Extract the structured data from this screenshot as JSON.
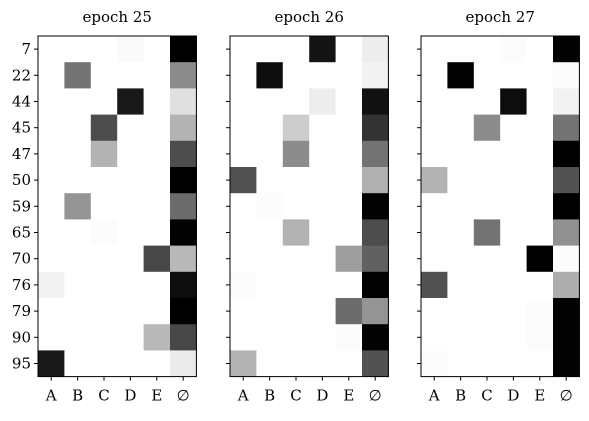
{
  "chart_data": {
    "type": "heatmap",
    "colormap": "grayscale (0 = white, 1 = black)",
    "rows": [
      "7",
      "22",
      "44",
      "45",
      "47",
      "50",
      "59",
      "65",
      "70",
      "76",
      "79",
      "90",
      "95"
    ],
    "cols": [
      "A",
      "B",
      "C",
      "D",
      "E",
      "∅"
    ],
    "panels": [
      {
        "title": "epoch 25",
        "values": [
          [
            0.0,
            0.0,
            0.0,
            0.02,
            0.0,
            1.0
          ],
          [
            0.0,
            0.55,
            0.0,
            0.0,
            0.0,
            0.45
          ],
          [
            0.0,
            0.0,
            0.0,
            0.9,
            0.0,
            0.12
          ],
          [
            0.0,
            0.0,
            0.7,
            0.0,
            0.0,
            0.3
          ],
          [
            0.0,
            0.0,
            0.3,
            0.0,
            0.0,
            0.7
          ],
          [
            0.0,
            0.0,
            0.0,
            0.0,
            0.0,
            1.0
          ],
          [
            0.0,
            0.42,
            0.0,
            0.0,
            0.0,
            0.58
          ],
          [
            0.0,
            0.0,
            0.01,
            0.0,
            0.0,
            0.99
          ],
          [
            0.0,
            0.0,
            0.0,
            0.0,
            0.72,
            0.28
          ],
          [
            0.05,
            0.0,
            0.0,
            0.0,
            0.0,
            0.95
          ],
          [
            0.0,
            0.0,
            0.0,
            0.0,
            0.0,
            1.0
          ],
          [
            0.0,
            0.0,
            0.0,
            0.0,
            0.28,
            0.72
          ],
          [
            0.9,
            0.0,
            0.0,
            0.0,
            0.0,
            0.08
          ]
        ]
      },
      {
        "title": "epoch 26",
        "values": [
          [
            0.0,
            0.0,
            0.0,
            0.92,
            0.0,
            0.07
          ],
          [
            0.0,
            0.95,
            0.0,
            0.0,
            0.0,
            0.05
          ],
          [
            0.0,
            0.0,
            0.0,
            0.07,
            0.0,
            0.93
          ],
          [
            0.0,
            0.0,
            0.2,
            0.0,
            0.0,
            0.8
          ],
          [
            0.0,
            0.0,
            0.45,
            0.0,
            0.0,
            0.55
          ],
          [
            0.68,
            0.0,
            0.0,
            0.0,
            0.0,
            0.31
          ],
          [
            0.0,
            0.01,
            0.0,
            0.0,
            0.0,
            0.99
          ],
          [
            0.0,
            0.0,
            0.3,
            0.0,
            0.0,
            0.7
          ],
          [
            0.0,
            0.0,
            0.0,
            0.0,
            0.38,
            0.62
          ],
          [
            0.01,
            0.0,
            0.0,
            0.0,
            0.0,
            0.99
          ],
          [
            0.0,
            0.0,
            0.0,
            0.0,
            0.58,
            0.42
          ],
          [
            0.0,
            0.0,
            0.0,
            0.0,
            0.01,
            0.99
          ],
          [
            0.3,
            0.0,
            0.0,
            0.0,
            0.0,
            0.68
          ]
        ]
      },
      {
        "title": "epoch 27",
        "values": [
          [
            0.0,
            0.0,
            0.0,
            0.01,
            0.0,
            0.99
          ],
          [
            0.0,
            0.99,
            0.0,
            0.0,
            0.0,
            0.01
          ],
          [
            0.0,
            0.0,
            0.0,
            0.95,
            0.0,
            0.05
          ],
          [
            0.0,
            0.0,
            0.45,
            0.0,
            0.0,
            0.55
          ],
          [
            0.0,
            0.0,
            0.0,
            0.0,
            0.0,
            1.0
          ],
          [
            0.3,
            0.0,
            0.0,
            0.0,
            0.0,
            0.68
          ],
          [
            0.0,
            0.0,
            0.0,
            0.0,
            0.0,
            1.0
          ],
          [
            0.0,
            0.0,
            0.55,
            0.0,
            0.0,
            0.43
          ],
          [
            0.0,
            0.0,
            0.0,
            0.0,
            1.0,
            0.01
          ],
          [
            0.68,
            0.0,
            0.0,
            0.0,
            0.0,
            0.32
          ],
          [
            0.0,
            0.0,
            0.0,
            0.0,
            0.01,
            0.99
          ],
          [
            0.0,
            0.0,
            0.0,
            0.0,
            0.01,
            0.99
          ],
          [
            0.01,
            0.0,
            0.0,
            0.0,
            0.0,
            0.99
          ]
        ]
      }
    ]
  }
}
